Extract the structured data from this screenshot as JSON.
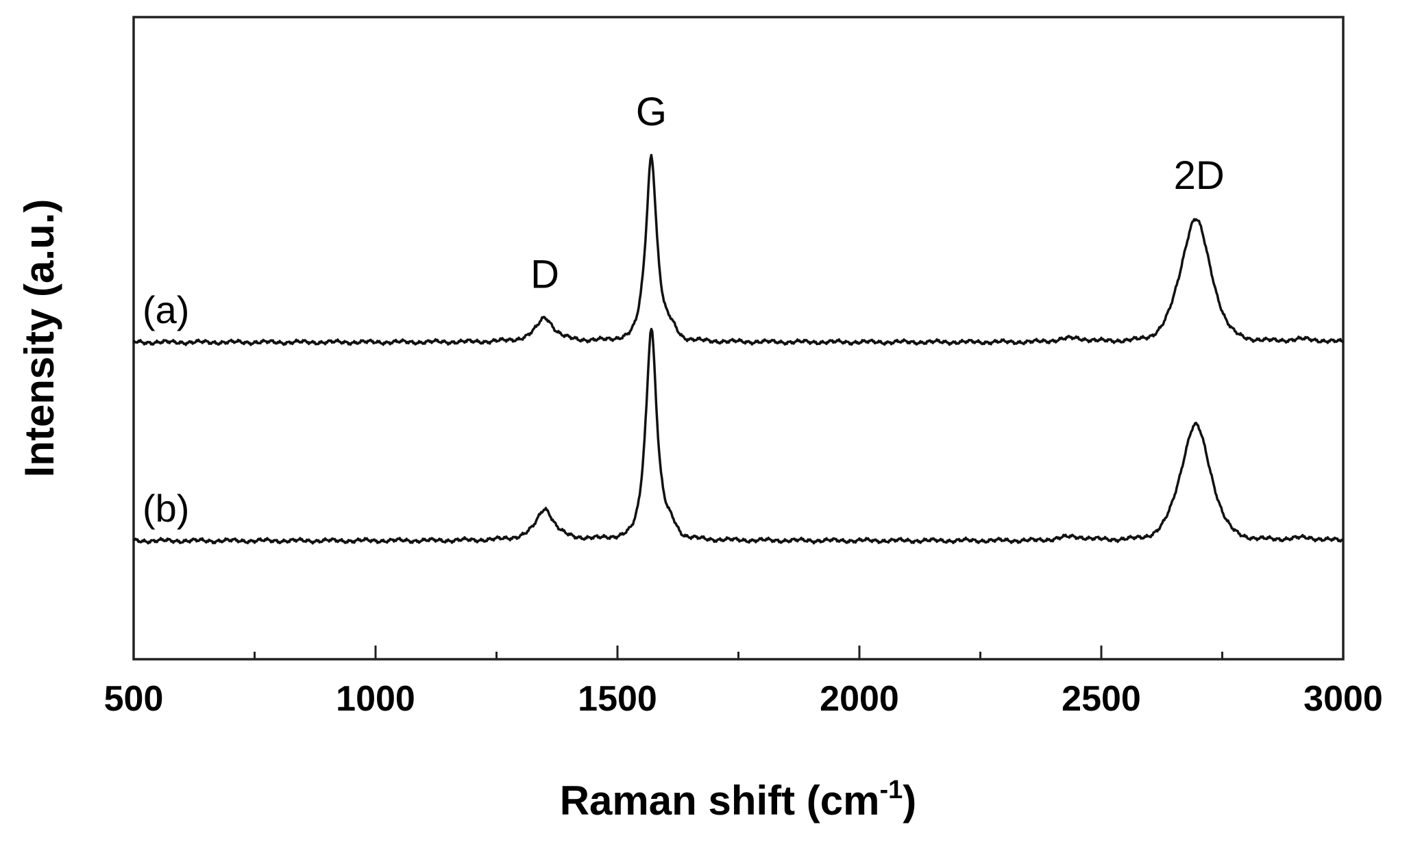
{
  "chart_data": {
    "type": "line",
    "title": "",
    "xlabel_main": "Raman shift (cm",
    "xlabel_sup": "-1",
    "xlabel_close": ")",
    "ylabel": "Intensity (a.u.)",
    "xlim": [
      500,
      3000
    ],
    "xticks": [
      500,
      1000,
      1500,
      2000,
      2500,
      3000
    ],
    "xtick_labels": [
      "500",
      "1000",
      "1500",
      "2000",
      "2500",
      "3000"
    ],
    "minor_tick_step": 250,
    "yticks": "none",
    "grid": false,
    "line_color": "#111111",
    "series": [
      {
        "name": "(a)",
        "baseline": 1.0,
        "peaks": [
          {
            "label": "D",
            "position": 1350,
            "intensity": 0.13
          },
          {
            "label": "G",
            "position": 1570,
            "intensity": 1.0
          },
          {
            "label": "2D",
            "position": 2695,
            "intensity": 0.66
          }
        ]
      },
      {
        "name": "(b)",
        "baseline": 0.0,
        "peaks": [
          {
            "label": "D",
            "position": 1350,
            "intensity": 0.17
          },
          {
            "label": "G",
            "position": 1570,
            "intensity": 1.14
          },
          {
            "label": "2D",
            "position": 2695,
            "intensity": 0.62
          }
        ]
      }
    ],
    "annotations": [
      {
        "text": "D",
        "x": 1350
      },
      {
        "text": "G",
        "x": 1570
      },
      {
        "text": "2D",
        "x": 2695
      }
    ]
  }
}
